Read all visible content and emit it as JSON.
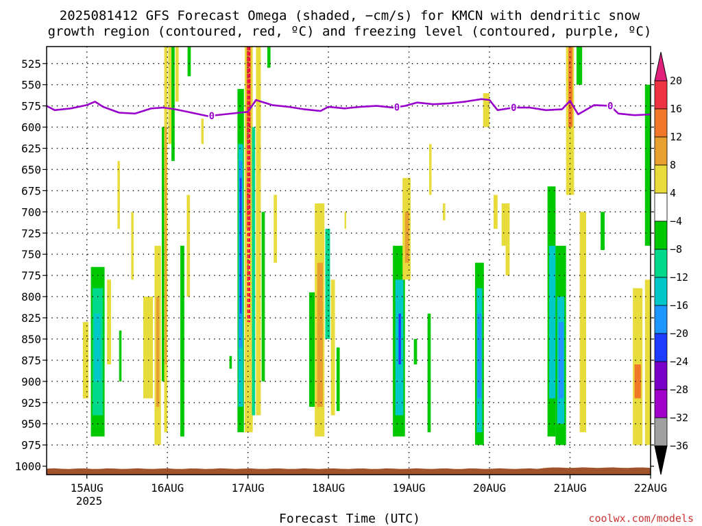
{
  "title_line1": "2025081412 GFS Forecast Omega (shaded, −cm/s) for KMCN with dendritic snow",
  "title_line2": "growth region (contoured, red, ºC) and freezing level (contoured, purple, ºC)",
  "credit": "coolwx.com/models",
  "credit_color": "#cc3333",
  "freezing_level_color": "#9900cc",
  "dgz_color": "#ee0044",
  "terrain_color": "#a0522d",
  "chart_data": {
    "type": "heatmap",
    "xlabel": "Forecast Time (UTC)",
    "x_ticks": [
      "15AUG",
      "16AUG",
      "17AUG",
      "18AUG",
      "19AUG",
      "20AUG",
      "21AUG",
      "22AUG"
    ],
    "x_year_label": "2025",
    "xlim_days": [
      14.5,
      22.0
    ],
    "y_ticks": [
      525,
      550,
      575,
      600,
      625,
      650,
      675,
      700,
      725,
      750,
      775,
      800,
      825,
      850,
      875,
      900,
      925,
      950,
      975,
      1000
    ],
    "ylim": [
      1010,
      505
    ],
    "colorbar": {
      "labels": [
        "20",
        "16",
        "12",
        "8",
        "4",
        "−4",
        "−8",
        "−12",
        "−16",
        "−20",
        "−24",
        "−28",
        "−32",
        "−36"
      ],
      "colors": [
        "#ee3344",
        "#f07828",
        "#e8a030",
        "#e8dc3c",
        "#ffffff",
        "#00c800",
        "#00d88c",
        "#00c8c8",
        "#1e96ff",
        "#1e3cff",
        "#7800c8",
        "#a000c8",
        "#a0a0a0"
      ],
      "top_arrow_color": "#e0207a",
      "bottom_arrow_color": "#000000"
    },
    "freezing_level": {
      "label": "0",
      "x": [
        14.5,
        14.6,
        14.8,
        15.0,
        15.1,
        15.2,
        15.4,
        15.6,
        15.8,
        15.95,
        16.1,
        16.3,
        16.5,
        16.7,
        16.9,
        17.0,
        17.1,
        17.3,
        17.5,
        17.7,
        17.9,
        18.0,
        18.2,
        18.4,
        18.6,
        18.8,
        18.95,
        19.1,
        19.3,
        19.5,
        19.7,
        19.9,
        20.0,
        20.1,
        20.3,
        20.5,
        20.7,
        20.9,
        21.0,
        21.1,
        21.3,
        21.5,
        21.6,
        21.8,
        22.0
      ],
      "y": [
        575,
        580,
        578,
        574,
        570,
        576,
        583,
        584,
        578,
        577,
        579,
        583,
        587,
        585,
        583,
        582,
        568,
        574,
        576,
        579,
        581,
        576,
        578,
        576,
        575,
        577,
        575,
        571,
        573,
        572,
        570,
        567,
        568,
        580,
        577,
        577,
        580,
        579,
        569,
        585,
        574,
        575,
        584,
        586,
        585
      ],
      "zero_label_x": [
        16.55,
        18.85,
        20.3,
        21.5
      ]
    },
    "dgz_contour": {
      "x": [
        17.0,
        17.02
      ],
      "p_top": 505,
      "p_bottom": 830
    },
    "omega_cells": [
      {
        "t0": 14.95,
        "t1": 15.02,
        "p0": 830,
        "p1": 920,
        "v": 6
      },
      {
        "t0": 15.05,
        "t1": 15.22,
        "p0": 765,
        "p1": 965,
        "v": -6
      },
      {
        "t0": 15.07,
        "t1": 15.2,
        "p0": 790,
        "p1": 940,
        "v": -10
      },
      {
        "t0": 15.09,
        "t1": 15.17,
        "p0": 820,
        "p1": 900,
        "v": -14
      },
      {
        "t0": 15.25,
        "t1": 15.3,
        "p0": 780,
        "p1": 880,
        "v": 5
      },
      {
        "t0": 15.38,
        "t1": 15.41,
        "p0": 640,
        "p1": 720,
        "v": 5
      },
      {
        "t0": 15.4,
        "t1": 15.43,
        "p0": 840,
        "p1": 900,
        "v": -6
      },
      {
        "t0": 15.55,
        "t1": 15.58,
        "p0": 700,
        "p1": 780,
        "v": 5
      },
      {
        "t0": 15.7,
        "t1": 15.82,
        "p0": 800,
        "p1": 920,
        "v": 5
      },
      {
        "t0": 15.84,
        "t1": 15.92,
        "p0": 740,
        "p1": 975,
        "v": 6
      },
      {
        "t0": 15.86,
        "t1": 15.9,
        "p0": 800,
        "p1": 930,
        "v": 10
      },
      {
        "t0": 15.93,
        "t1": 15.96,
        "p0": 600,
        "p1": 900,
        "v": -6
      },
      {
        "t0": 15.96,
        "t1": 16.0,
        "p0": 505,
        "p1": 960,
        "v": 6
      },
      {
        "t0": 15.97,
        "t1": 15.99,
        "p0": 600,
        "p1": 880,
        "v": 10
      },
      {
        "t0": 16.01,
        "t1": 16.05,
        "p0": 505,
        "p1": 620,
        "v": 6
      },
      {
        "t0": 16.05,
        "t1": 16.09,
        "p0": 505,
        "p1": 640,
        "v": -6
      },
      {
        "t0": 16.1,
        "t1": 16.14,
        "p0": 505,
        "p1": 570,
        "v": 6
      },
      {
        "t0": 16.16,
        "t1": 16.21,
        "p0": 740,
        "p1": 965,
        "v": -6
      },
      {
        "t0": 16.25,
        "t1": 16.29,
        "p0": 505,
        "p1": 540,
        "v": -6
      },
      {
        "t0": 16.24,
        "t1": 16.28,
        "p0": 680,
        "p1": 800,
        "v": 5
      },
      {
        "t0": 16.42,
        "t1": 16.45,
        "p0": 590,
        "p1": 620,
        "v": 5
      },
      {
        "t0": 16.77,
        "t1": 16.8,
        "p0": 870,
        "p1": 885,
        "v": -6
      },
      {
        "t0": 16.87,
        "t1": 16.95,
        "p0": 555,
        "p1": 960,
        "v": -6
      },
      {
        "t0": 16.88,
        "t1": 16.94,
        "p0": 620,
        "p1": 930,
        "v": -12
      },
      {
        "t0": 16.89,
        "t1": 16.93,
        "p0": 640,
        "p1": 860,
        "v": -16
      },
      {
        "t0": 16.9,
        "t1": 16.92,
        "p0": 660,
        "p1": 820,
        "v": -22
      },
      {
        "t0": 16.96,
        "t1": 17.06,
        "p0": 505,
        "p1": 960,
        "v": 6
      },
      {
        "t0": 16.98,
        "t1": 17.04,
        "p0": 505,
        "p1": 720,
        "v": 10
      },
      {
        "t0": 16.99,
        "t1": 17.03,
        "p0": 505,
        "p1": 600,
        "v": 14
      },
      {
        "t0": 17.05,
        "t1": 17.09,
        "p0": 600,
        "p1": 940,
        "v": -10
      },
      {
        "t0": 17.1,
        "t1": 17.16,
        "p0": 505,
        "p1": 940,
        "v": 6
      },
      {
        "t0": 17.17,
        "t1": 17.21,
        "p0": 700,
        "p1": 900,
        "v": -6
      },
      {
        "t0": 17.24,
        "t1": 17.28,
        "p0": 505,
        "p1": 530,
        "v": -6
      },
      {
        "t0": 17.32,
        "t1": 17.36,
        "p0": 680,
        "p1": 760,
        "v": 5
      },
      {
        "t0": 17.76,
        "t1": 17.83,
        "p0": 795,
        "p1": 930,
        "v": -6
      },
      {
        "t0": 17.83,
        "t1": 17.95,
        "p0": 690,
        "p1": 965,
        "v": 5
      },
      {
        "t0": 17.86,
        "t1": 17.93,
        "p0": 760,
        "p1": 930,
        "v": 10
      },
      {
        "t0": 17.96,
        "t1": 18.02,
        "p0": 720,
        "p1": 850,
        "v": -10
      },
      {
        "t0": 18.03,
        "t1": 18.08,
        "p0": 780,
        "p1": 940,
        "v": 5
      },
      {
        "t0": 18.1,
        "t1": 18.14,
        "p0": 860,
        "p1": 935,
        "v": -6
      },
      {
        "t0": 18.2,
        "t1": 18.22,
        "p0": 700,
        "p1": 720,
        "v": 5
      },
      {
        "t0": 18.8,
        "t1": 18.95,
        "p0": 740,
        "p1": 965,
        "v": -6
      },
      {
        "t0": 18.83,
        "t1": 18.93,
        "p0": 780,
        "p1": 940,
        "v": -12
      },
      {
        "t0": 18.87,
        "t1": 18.9,
        "p0": 820,
        "p1": 880,
        "v": -22
      },
      {
        "t0": 18.92,
        "t1": 19.02,
        "p0": 660,
        "p1": 780,
        "v": 6
      },
      {
        "t0": 18.95,
        "t1": 19.0,
        "p0": 700,
        "p1": 760,
        "v": 10
      },
      {
        "t0": 19.06,
        "t1": 19.1,
        "p0": 850,
        "p1": 880,
        "v": -6
      },
      {
        "t0": 19.23,
        "t1": 19.27,
        "p0": 820,
        "p1": 960,
        "v": -6
      },
      {
        "t0": 19.25,
        "t1": 19.28,
        "p0": 620,
        "p1": 680,
        "v": 5
      },
      {
        "t0": 19.42,
        "t1": 19.45,
        "p0": 690,
        "p1": 710,
        "v": 5
      },
      {
        "t0": 19.82,
        "t1": 19.93,
        "p0": 760,
        "p1": 975,
        "v": -6
      },
      {
        "t0": 19.84,
        "t1": 19.91,
        "p0": 790,
        "p1": 960,
        "v": -12
      },
      {
        "t0": 19.85,
        "t1": 19.9,
        "p0": 820,
        "p1": 920,
        "v": -16
      },
      {
        "t0": 19.92,
        "t1": 20.0,
        "p0": 560,
        "p1": 600,
        "v": 5
      },
      {
        "t0": 20.05,
        "t1": 20.1,
        "p0": 680,
        "p1": 720,
        "v": 5
      },
      {
        "t0": 20.15,
        "t1": 20.25,
        "p0": 690,
        "p1": 740,
        "v": 5
      },
      {
        "t0": 20.2,
        "t1": 20.25,
        "p0": 740,
        "p1": 775,
        "v": 5
      },
      {
        "t0": 20.72,
        "t1": 20.82,
        "p0": 670,
        "p1": 965,
        "v": -6
      },
      {
        "t0": 20.74,
        "t1": 20.82,
        "p0": 740,
        "p1": 920,
        "v": -12
      },
      {
        "t0": 20.82,
        "t1": 20.95,
        "p0": 740,
        "p1": 975,
        "v": -6
      },
      {
        "t0": 20.84,
        "t1": 20.93,
        "p0": 800,
        "p1": 950,
        "v": -12
      },
      {
        "t0": 20.86,
        "t1": 20.92,
        "p0": 830,
        "p1": 920,
        "v": -16
      },
      {
        "t0": 20.95,
        "t1": 21.05,
        "p0": 505,
        "p1": 680,
        "v": 6
      },
      {
        "t0": 20.98,
        "t1": 21.03,
        "p0": 505,
        "p1": 600,
        "v": 14
      },
      {
        "t0": 21.08,
        "t1": 21.15,
        "p0": 505,
        "p1": 550,
        "v": -6
      },
      {
        "t0": 21.12,
        "t1": 21.2,
        "p0": 700,
        "p1": 960,
        "v": 5
      },
      {
        "t0": 21.38,
        "t1": 21.43,
        "p0": 700,
        "p1": 745,
        "v": -6
      },
      {
        "t0": 21.78,
        "t1": 21.9,
        "p0": 790,
        "p1": 975,
        "v": 5
      },
      {
        "t0": 21.8,
        "t1": 21.88,
        "p0": 880,
        "p1": 920,
        "v": 12
      },
      {
        "t0": 21.93,
        "t1": 22.0,
        "p0": 550,
        "p1": 740,
        "v": -6
      },
      {
        "t0": 21.93,
        "t1": 22.0,
        "p0": 780,
        "p1": 975,
        "v": 5
      }
    ]
  }
}
